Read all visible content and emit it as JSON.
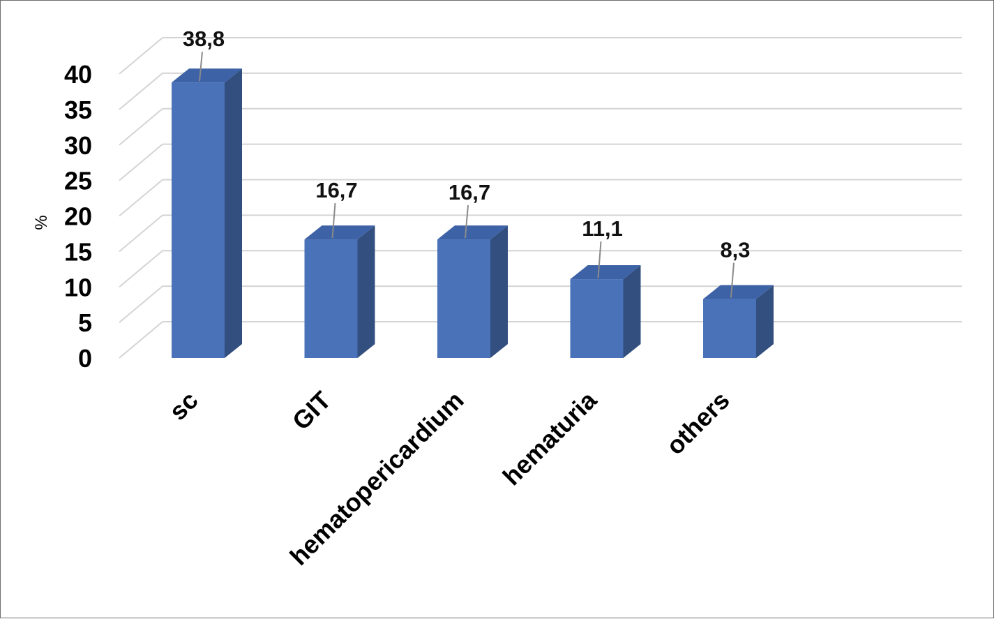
{
  "chart_data": {
    "type": "bar",
    "style": "3d-column",
    "categories": [
      "sc",
      "GIT",
      "hematopericardium",
      "hematuria",
      "others"
    ],
    "values": [
      38.8,
      16.7,
      16.7,
      11.1,
      8.3
    ],
    "data_labels": [
      "38,8",
      "16,7",
      "16,7",
      "11,1",
      "8,3"
    ],
    "ylabel": "%",
    "yticks": [
      "0",
      "5",
      "10",
      "15",
      "20",
      "25",
      "30",
      "35",
      "40"
    ],
    "ylim": [
      0,
      40
    ],
    "grid": true,
    "legend": "none"
  },
  "colors": {
    "bar_front": "#4a72b8",
    "bar_side": "#334f80",
    "bar_top": "#3d63a6",
    "grid": "#d4d4d4",
    "leader": "#8a8a8a"
  }
}
